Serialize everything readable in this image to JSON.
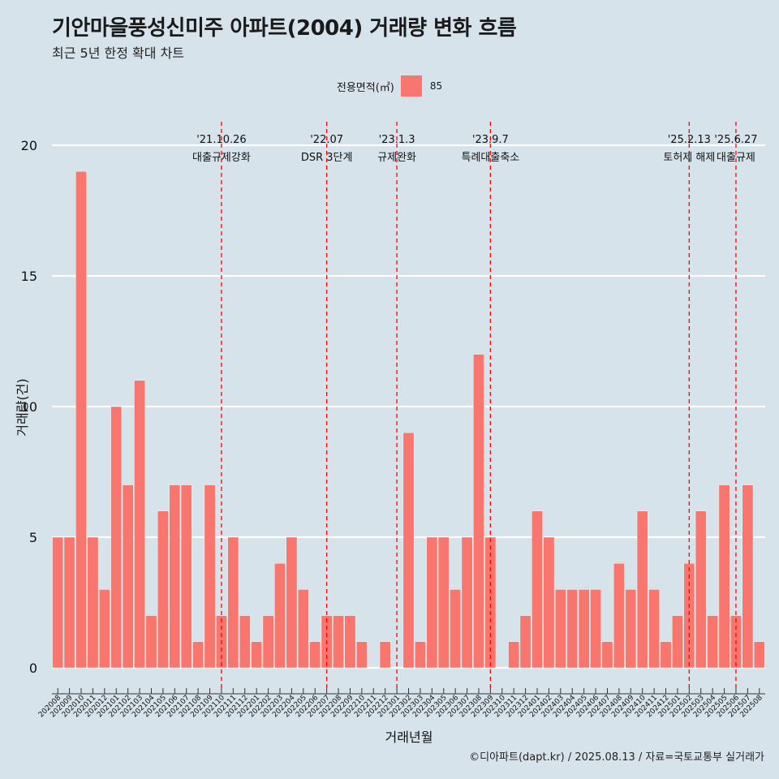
{
  "title": "기안마을풍성신미주 아파트(2004) 거래량 변화 흐름",
  "subtitle": "최근 5년 한정 확대 차트",
  "caption": "©디아파트(dapt.kr) / 2025.08.13 / 자료=국토교통부 실거래가",
  "legend": {
    "title": "전용면적(㎡)",
    "label": "85",
    "color": "#f8766d"
  },
  "chart_data": {
    "type": "bar",
    "xlabel": "거래년월",
    "ylabel": "거래량(건)",
    "ylim": [
      0,
      20
    ],
    "yticks": [
      0,
      5,
      10,
      15,
      20
    ],
    "grid": true,
    "legend_position": "top",
    "bar_color": "#f8766d",
    "categories": [
      "202008",
      "202009",
      "202010",
      "202011",
      "202012",
      "202101",
      "202102",
      "202103",
      "202104",
      "202105",
      "202106",
      "202107",
      "202108",
      "202109",
      "202110",
      "202111",
      "202112",
      "202201",
      "202202",
      "202203",
      "202204",
      "202205",
      "202206",
      "202207",
      "202208",
      "202209",
      "202210",
      "202211",
      "202212",
      "202301",
      "202302",
      "202303",
      "202304",
      "202305",
      "202306",
      "202307",
      "202308",
      "202309",
      "202310",
      "202311",
      "202312",
      "202401",
      "202402",
      "202403",
      "202404",
      "202405",
      "202406",
      "202407",
      "202408",
      "202409",
      "202410",
      "202411",
      "202412",
      "202501",
      "202502",
      "202503",
      "202504",
      "202505",
      "202506",
      "202507",
      "202508"
    ],
    "series": [
      {
        "values": [
          5,
          5,
          19,
          5,
          3,
          10,
          7,
          11,
          2,
          6,
          7,
          7,
          1,
          7,
          2,
          5,
          2,
          1,
          2,
          4,
          5,
          3,
          1,
          2,
          2,
          2,
          1,
          0,
          1,
          0,
          9,
          1,
          5,
          5,
          3,
          5,
          12,
          5,
          0,
          1,
          2,
          6,
          5,
          3,
          3,
          3,
          3,
          1,
          4,
          3,
          6,
          3,
          1,
          2,
          4,
          6,
          2,
          7,
          2,
          7,
          1
        ]
      }
    ],
    "annotations": [
      {
        "x": "202110",
        "date": "'21.10.26",
        "label": "대출규제강화"
      },
      {
        "x": "202207",
        "date": "'22.07",
        "label": "DSR 3단계"
      },
      {
        "x": "202301",
        "date": "'23.1.3",
        "label": "규제완화"
      },
      {
        "x": "202309",
        "date": "'23.9.7",
        "label": "특례대출축소"
      },
      {
        "x": "202502",
        "date": "'25.2.13",
        "label": "토허제 해제"
      },
      {
        "x": "202506",
        "date": "'25.6.27",
        "label": "대출규제"
      }
    ]
  }
}
